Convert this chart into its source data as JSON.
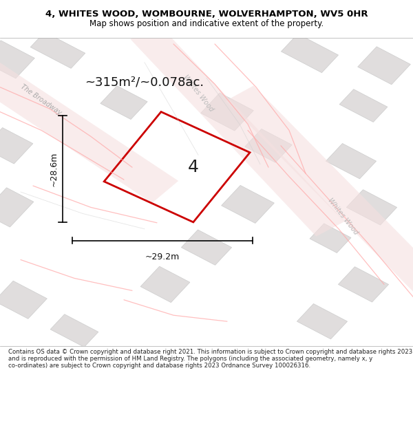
{
  "title_line1": "4, WHITES WOOD, WOMBOURNE, WOLVERHAMPTON, WV5 0HR",
  "title_line2": "Map shows position and indicative extent of the property.",
  "area_text": "~315m²/~0.078ac.",
  "width_label": "~29.2m",
  "height_label": "~28.6m",
  "plot_number": "4",
  "footer_text": "Contains OS data © Crown copyright and database right 2021. This information is subject to Crown copyright and database rights 2023 and is reproduced with the permission of HM Land Registry. The polygons (including the associated geometry, namely x, y co-ordinates) are subject to Crown copyright and database rights 2023 Ordnance Survey 100026316.",
  "bg_color": "#f5f5f5",
  "map_bg": "#eeecec",
  "building_color": "#e0dddd",
  "road_line_color": "#ffcccc",
  "plot_poly_color": "#cc0000",
  "title_bg": "#ffffff",
  "footer_bg": "#ffffff"
}
